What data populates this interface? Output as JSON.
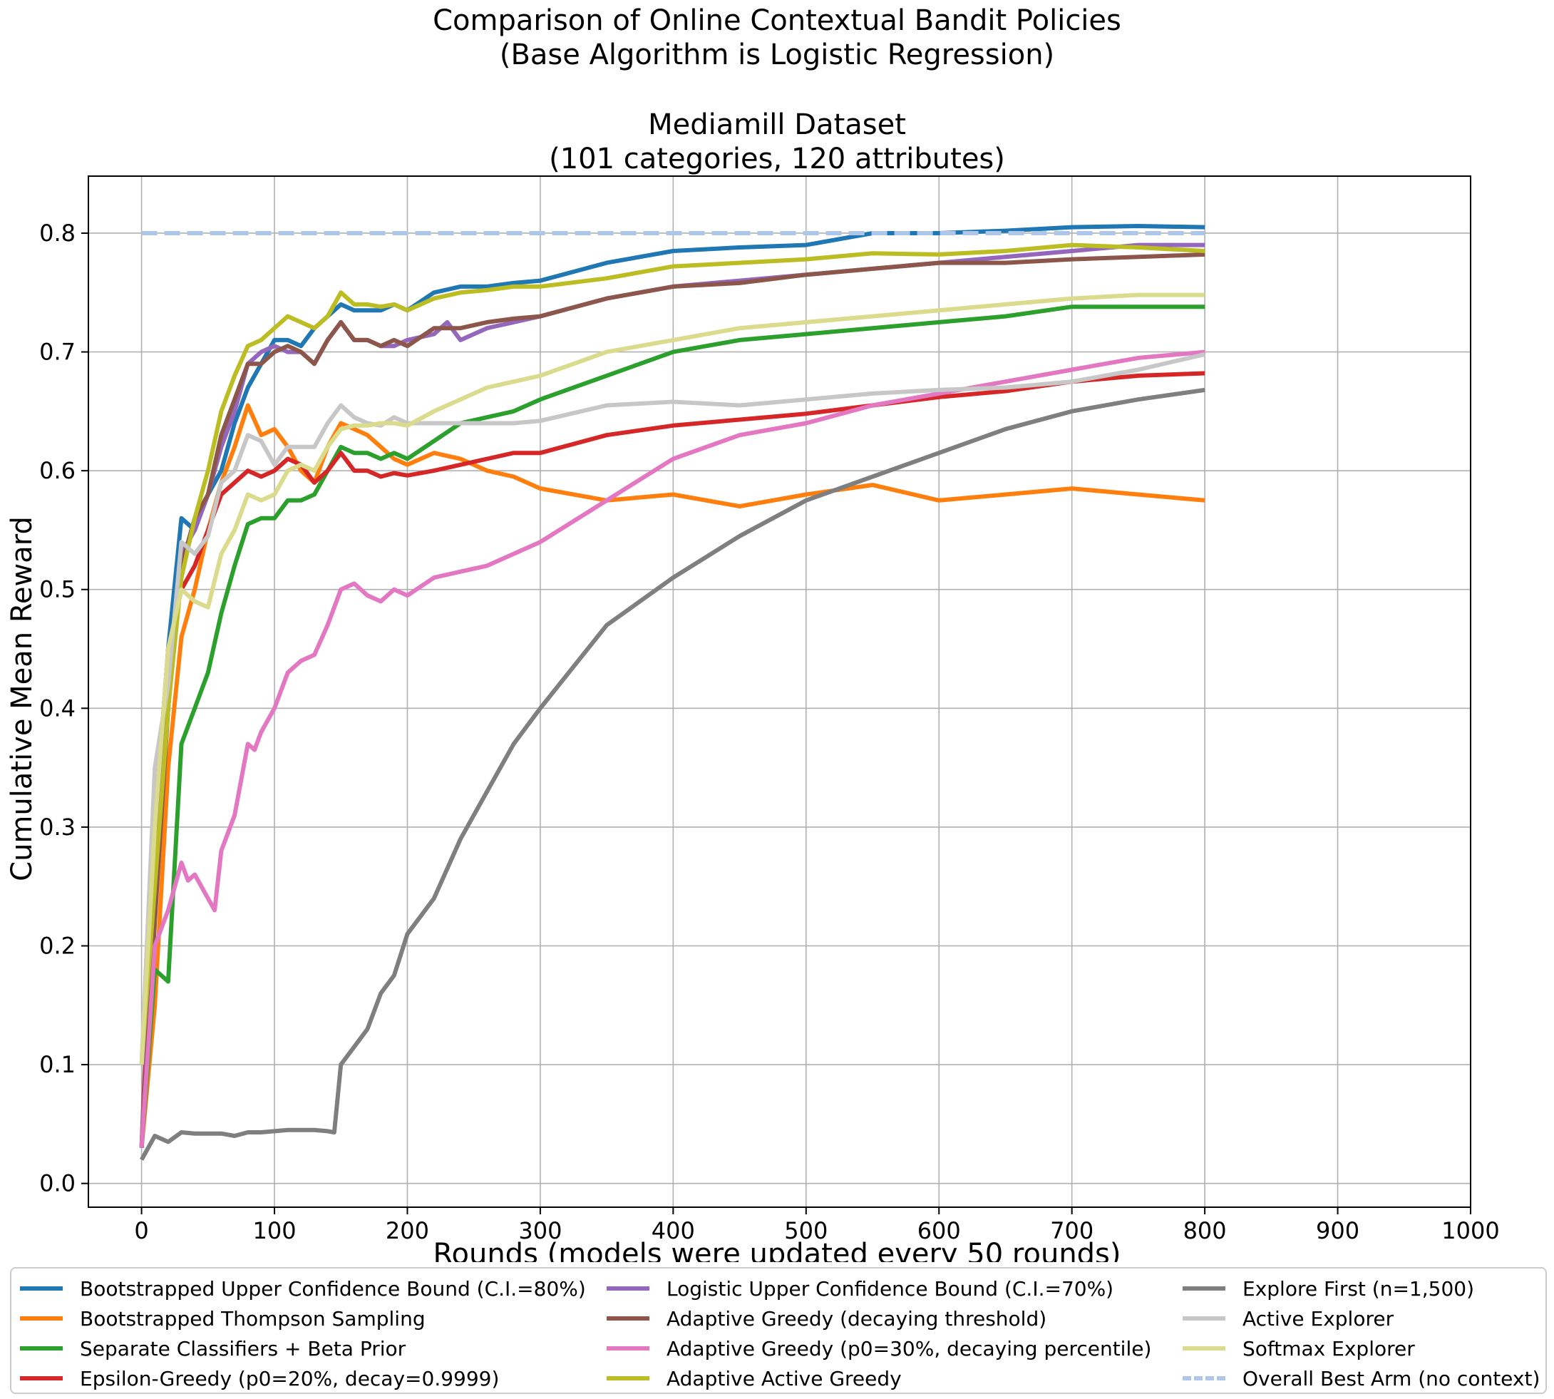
{
  "chart_data": {
    "type": "line",
    "title": "Comparison of Online Contextual Bandit Policies\n(Base Algorithm is Logistic Regression)\n\nMediamill Dataset\n(101 categories, 120 attributes)",
    "title_lines": [
      "Comparison of Online Contextual Bandit Policies",
      "(Base Algorithm is Logistic Regression)",
      "Mediamill Dataset",
      "(101 categories, 120 attributes)"
    ],
    "xlabel": "Rounds (models were updated every 50 rounds)",
    "ylabel": "Cumulative Mean Reward",
    "xlim": [
      -40,
      1000
    ],
    "ylim": [
      -0.02,
      0.848
    ],
    "xticks": [
      0,
      100,
      200,
      300,
      400,
      500,
      600,
      700,
      800,
      900,
      1000
    ],
    "yticks": [
      0.0,
      0.1,
      0.2,
      0.3,
      0.4,
      0.5,
      0.6,
      0.7,
      0.8
    ],
    "xtick_labels": [
      "0",
      "100",
      "200",
      "300",
      "400",
      "500",
      "600",
      "700",
      "800",
      "900",
      "1000"
    ],
    "ytick_labels": [
      "0.0",
      "0.1",
      "0.2",
      "0.3",
      "0.4",
      "0.5",
      "0.6",
      "0.7",
      "0.8"
    ],
    "grid": true,
    "legend_position": "below plot, 3 columns",
    "series": [
      {
        "name": "Bootstrapped Upper Confidence Bound (C.I.=80%)",
        "color": "#1f77b4",
        "x": [
          0,
          10,
          20,
          30,
          40,
          50,
          60,
          70,
          80,
          90,
          100,
          110,
          120,
          130,
          140,
          150,
          160,
          170,
          180,
          190,
          200,
          220,
          240,
          260,
          280,
          300,
          350,
          400,
          450,
          500,
          550,
          600,
          650,
          700,
          750,
          800
        ],
        "y": [
          0.03,
          0.25,
          0.45,
          0.56,
          0.55,
          0.58,
          0.6,
          0.64,
          0.67,
          0.69,
          0.71,
          0.71,
          0.705,
          0.72,
          0.73,
          0.74,
          0.735,
          0.735,
          0.735,
          0.74,
          0.735,
          0.75,
          0.755,
          0.755,
          0.758,
          0.76,
          0.775,
          0.785,
          0.788,
          0.79,
          0.8,
          0.8,
          0.802,
          0.805,
          0.806,
          0.805
        ]
      },
      {
        "name": "Bootstrapped Thompson Sampling",
        "color": "#ff7f0e",
        "x": [
          0,
          10,
          20,
          30,
          40,
          50,
          60,
          70,
          80,
          90,
          100,
          110,
          120,
          130,
          140,
          150,
          160,
          170,
          180,
          190,
          200,
          220,
          240,
          260,
          280,
          300,
          350,
          400,
          450,
          500,
          550,
          600,
          650,
          700,
          750,
          800
        ],
        "y": [
          0.03,
          0.15,
          0.35,
          0.46,
          0.5,
          0.55,
          0.59,
          0.62,
          0.655,
          0.63,
          0.635,
          0.62,
          0.6,
          0.59,
          0.62,
          0.64,
          0.635,
          0.63,
          0.62,
          0.61,
          0.605,
          0.615,
          0.61,
          0.6,
          0.595,
          0.585,
          0.575,
          0.58,
          0.57,
          0.58,
          0.588,
          0.575,
          0.58,
          0.585,
          0.58,
          0.575
        ]
      },
      {
        "name": "Separate Classifiers + Beta Prior",
        "color": "#2ca02c",
        "x": [
          0,
          10,
          20,
          30,
          40,
          50,
          60,
          70,
          80,
          90,
          100,
          110,
          120,
          130,
          140,
          150,
          160,
          170,
          180,
          190,
          200,
          220,
          240,
          260,
          280,
          300,
          350,
          400,
          450,
          500,
          550,
          600,
          650,
          700,
          750,
          800
        ],
        "y": [
          0.03,
          0.18,
          0.17,
          0.37,
          0.4,
          0.43,
          0.48,
          0.52,
          0.555,
          0.56,
          0.56,
          0.575,
          0.575,
          0.58,
          0.6,
          0.62,
          0.615,
          0.615,
          0.61,
          0.615,
          0.61,
          0.625,
          0.64,
          0.645,
          0.65,
          0.66,
          0.68,
          0.7,
          0.71,
          0.715,
          0.72,
          0.725,
          0.73,
          0.738,
          0.738,
          0.738
        ]
      },
      {
        "name": "Epsilon-Greedy (p0=20%, decay=0.9999)",
        "color": "#d62728",
        "x": [
          0,
          10,
          20,
          30,
          40,
          50,
          60,
          70,
          80,
          90,
          100,
          110,
          120,
          130,
          140,
          150,
          160,
          170,
          180,
          190,
          200,
          220,
          240,
          260,
          280,
          300,
          350,
          400,
          450,
          500,
          550,
          600,
          650,
          700,
          750,
          800
        ],
        "y": [
          0.03,
          0.3,
          0.45,
          0.5,
          0.52,
          0.55,
          0.58,
          0.59,
          0.6,
          0.595,
          0.6,
          0.61,
          0.605,
          0.59,
          0.6,
          0.615,
          0.6,
          0.6,
          0.595,
          0.598,
          0.596,
          0.6,
          0.605,
          0.61,
          0.615,
          0.615,
          0.63,
          0.638,
          0.643,
          0.648,
          0.655,
          0.662,
          0.667,
          0.675,
          0.68,
          0.682
        ]
      },
      {
        "name": "Logistic Upper Confidence Bound (C.I.=70%)",
        "color": "#9467bd",
        "x": [
          0,
          10,
          20,
          30,
          40,
          50,
          60,
          70,
          80,
          90,
          100,
          110,
          120,
          130,
          140,
          150,
          160,
          170,
          180,
          190,
          200,
          220,
          230,
          240,
          260,
          280,
          300,
          350,
          400,
          450,
          500,
          550,
          600,
          650,
          700,
          750,
          800
        ],
        "y": [
          0.03,
          0.25,
          0.4,
          0.53,
          0.55,
          0.58,
          0.62,
          0.65,
          0.69,
          0.7,
          0.705,
          0.7,
          0.7,
          0.69,
          0.71,
          0.725,
          0.71,
          0.71,
          0.705,
          0.705,
          0.71,
          0.715,
          0.725,
          0.71,
          0.72,
          0.725,
          0.73,
          0.745,
          0.755,
          0.76,
          0.765,
          0.77,
          0.775,
          0.78,
          0.785,
          0.79,
          0.79
        ]
      },
      {
        "name": "Adaptive Greedy (decaying threshold)",
        "color": "#8c564b",
        "x": [
          0,
          10,
          20,
          30,
          40,
          50,
          60,
          70,
          80,
          90,
          100,
          110,
          120,
          130,
          140,
          150,
          160,
          170,
          180,
          190,
          200,
          220,
          240,
          260,
          280,
          300,
          350,
          400,
          450,
          500,
          550,
          600,
          650,
          700,
          750,
          800
        ],
        "y": [
          0.03,
          0.22,
          0.4,
          0.52,
          0.56,
          0.58,
          0.63,
          0.66,
          0.69,
          0.69,
          0.7,
          0.705,
          0.7,
          0.69,
          0.71,
          0.725,
          0.71,
          0.71,
          0.705,
          0.71,
          0.705,
          0.72,
          0.72,
          0.725,
          0.728,
          0.73,
          0.745,
          0.755,
          0.758,
          0.765,
          0.77,
          0.775,
          0.775,
          0.778,
          0.78,
          0.782
        ]
      },
      {
        "name": "Adaptive Greedy (p0=30%, decaying percentile)",
        "color": "#e377c2",
        "x": [
          0,
          10,
          20,
          30,
          35,
          40,
          50,
          55,
          60,
          70,
          80,
          85,
          90,
          100,
          110,
          120,
          130,
          140,
          150,
          160,
          170,
          180,
          190,
          200,
          220,
          240,
          260,
          280,
          300,
          350,
          400,
          450,
          500,
          550,
          600,
          650,
          700,
          750,
          800
        ],
        "y": [
          0.03,
          0.2,
          0.23,
          0.27,
          0.255,
          0.26,
          0.24,
          0.23,
          0.28,
          0.31,
          0.37,
          0.365,
          0.38,
          0.4,
          0.43,
          0.44,
          0.445,
          0.47,
          0.5,
          0.505,
          0.495,
          0.49,
          0.5,
          0.495,
          0.51,
          0.515,
          0.52,
          0.53,
          0.54,
          0.575,
          0.61,
          0.63,
          0.64,
          0.655,
          0.665,
          0.675,
          0.685,
          0.695,
          0.7
        ]
      },
      {
        "name": "Adaptive Active Greedy",
        "color": "#bcbd22",
        "x": [
          0,
          10,
          20,
          30,
          40,
          50,
          60,
          70,
          80,
          90,
          100,
          110,
          120,
          130,
          140,
          150,
          160,
          170,
          180,
          190,
          200,
          220,
          240,
          260,
          280,
          300,
          350,
          400,
          450,
          500,
          550,
          600,
          650,
          700,
          750,
          800
        ],
        "y": [
          0.1,
          0.25,
          0.4,
          0.51,
          0.56,
          0.6,
          0.65,
          0.68,
          0.705,
          0.71,
          0.72,
          0.73,
          0.725,
          0.72,
          0.73,
          0.75,
          0.74,
          0.74,
          0.738,
          0.74,
          0.735,
          0.745,
          0.75,
          0.752,
          0.755,
          0.755,
          0.762,
          0.772,
          0.775,
          0.778,
          0.783,
          0.782,
          0.785,
          0.79,
          0.788,
          0.785
        ]
      },
      {
        "name": "Explore First (n=1,500)",
        "color": "#7f7f7f",
        "x": [
          0,
          10,
          20,
          30,
          40,
          50,
          60,
          70,
          80,
          90,
          100,
          110,
          120,
          130,
          140,
          145,
          150,
          160,
          170,
          180,
          190,
          200,
          220,
          240,
          260,
          280,
          300,
          350,
          400,
          450,
          500,
          550,
          600,
          650,
          700,
          750,
          800
        ],
        "y": [
          0.02,
          0.04,
          0.035,
          0.043,
          0.042,
          0.042,
          0.042,
          0.04,
          0.043,
          0.043,
          0.044,
          0.045,
          0.045,
          0.045,
          0.044,
          0.043,
          0.1,
          0.115,
          0.13,
          0.16,
          0.175,
          0.21,
          0.24,
          0.29,
          0.33,
          0.37,
          0.4,
          0.47,
          0.51,
          0.545,
          0.575,
          0.595,
          0.615,
          0.635,
          0.65,
          0.66,
          0.668
        ]
      },
      {
        "name": "Active Explorer",
        "color": "#c7c7c7",
        "x": [
          0,
          10,
          20,
          30,
          40,
          50,
          60,
          70,
          80,
          90,
          100,
          110,
          120,
          130,
          140,
          150,
          160,
          170,
          180,
          190,
          200,
          220,
          240,
          260,
          280,
          300,
          350,
          400,
          450,
          500,
          550,
          600,
          650,
          700,
          750,
          800
        ],
        "y": [
          0.1,
          0.35,
          0.42,
          0.54,
          0.53,
          0.545,
          0.59,
          0.6,
          0.63,
          0.625,
          0.605,
          0.62,
          0.62,
          0.62,
          0.64,
          0.655,
          0.645,
          0.64,
          0.638,
          0.645,
          0.64,
          0.64,
          0.64,
          0.64,
          0.64,
          0.642,
          0.655,
          0.658,
          0.655,
          0.66,
          0.665,
          0.668,
          0.67,
          0.675,
          0.685,
          0.698
        ]
      },
      {
        "name": "Softmax Explorer",
        "color": "#dbdb8d",
        "x": [
          0,
          10,
          20,
          30,
          40,
          50,
          60,
          70,
          80,
          90,
          100,
          110,
          120,
          130,
          140,
          150,
          160,
          170,
          180,
          190,
          200,
          220,
          240,
          260,
          280,
          300,
          350,
          400,
          450,
          500,
          550,
          600,
          650,
          700,
          750,
          800
        ],
        "y": [
          0.1,
          0.3,
          0.45,
          0.5,
          0.49,
          0.485,
          0.53,
          0.55,
          0.58,
          0.575,
          0.58,
          0.6,
          0.605,
          0.6,
          0.62,
          0.635,
          0.638,
          0.638,
          0.64,
          0.64,
          0.638,
          0.65,
          0.66,
          0.67,
          0.675,
          0.68,
          0.7,
          0.71,
          0.72,
          0.725,
          0.73,
          0.735,
          0.74,
          0.745,
          0.748,
          0.748
        ]
      },
      {
        "name": "Overall Best Arm (no context)",
        "color": "#aec7e8",
        "dashed": true,
        "x": [
          0,
          800
        ],
        "y": [
          0.8,
          0.8
        ]
      }
    ]
  }
}
